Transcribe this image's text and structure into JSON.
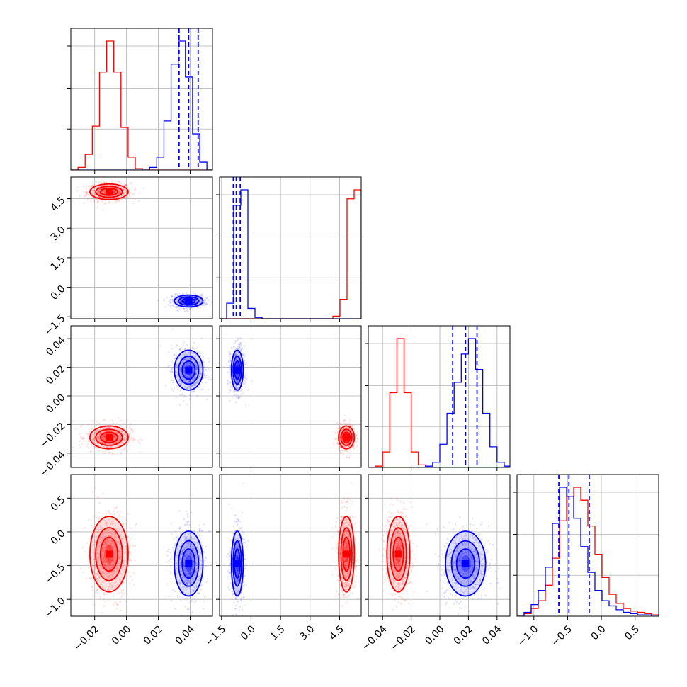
{
  "colors": {
    "series_red": "#ff0000",
    "series_blue": "#0000ff",
    "grid": "#b0b0b0",
    "axes": "#000000"
  },
  "chart_data": {
    "type": "corner",
    "grid": true,
    "parameters": [
      {
        "key": "p1",
        "range": [
          -0.035,
          0.054
        ],
        "ticks": [
          -0.02,
          0.0,
          0.02,
          0.04
        ],
        "tick_labels": [
          "−0.02",
          "0.00",
          "0.02",
          "0.04"
        ]
      },
      {
        "key": "p2",
        "range": [
          -1.6,
          5.6
        ],
        "ticks": [
          -1.5,
          0.0,
          1.5,
          3.0,
          4.5
        ],
        "tick_labels": [
          "−1.5",
          "0.0",
          "1.5",
          "3.0",
          "4.5"
        ]
      },
      {
        "key": "p3",
        "range": [
          -0.05,
          0.049
        ],
        "ticks": [
          -0.04,
          -0.02,
          0.0,
          0.02,
          0.04
        ],
        "tick_labels": [
          "−0.04",
          "−0.02",
          "0.00",
          "0.02",
          "0.04"
        ]
      },
      {
        "key": "p4",
        "range": [
          -1.25,
          0.85
        ],
        "ticks": [
          -1.0,
          -0.5,
          0.0,
          0.5
        ],
        "tick_labels": [
          "−1.0",
          "−0.5",
          "0.0",
          "0.5"
        ]
      }
    ],
    "series": [
      {
        "color": "#ff0000",
        "mean": [
          -0.011,
          4.85,
          -0.029,
          -0.33
        ],
        "std": [
          0.006,
          0.2,
          0.004,
          0.28
        ]
      },
      {
        "color": "#0000ff",
        "mean": [
          0.039,
          -0.7,
          0.018,
          -0.47
        ],
        "std": [
          0.0045,
          0.15,
          0.007,
          0.24
        ],
        "quantiles": [
          [
            0.033,
            0.039,
            0.045
          ],
          [
            -0.9,
            -0.75,
            -0.55
          ],
          [
            0.009,
            0.018,
            0.026
          ],
          [
            -0.63,
            -0.48,
            -0.18
          ]
        ]
      }
    ],
    "histograms_1d": [
      {
        "param": 0,
        "bin_edges": [
          -0.035,
          -0.0305,
          -0.026,
          -0.0215,
          -0.017,
          -0.0125,
          -0.008,
          -0.0035,
          0.001,
          0.0055,
          0.01,
          0.0145,
          0.019,
          0.0235,
          0.028,
          0.0325,
          0.037,
          0.0415,
          0.046,
          0.0505,
          0.054
        ],
        "counts": {
          "red": [
            0,
            0.02,
            0.12,
            0.34,
            0.76,
            1.0,
            0.76,
            0.33,
            0.1,
            0.01,
            0,
            0,
            0,
            0,
            0,
            0,
            0,
            0,
            0,
            0
          ],
          "blue": [
            0,
            0,
            0,
            0,
            0,
            0,
            0,
            0,
            0,
            0,
            0,
            0.02,
            0.1,
            0.38,
            0.82,
            1.0,
            0.72,
            0.28,
            0.06,
            0
          ]
        }
      },
      {
        "param": 1,
        "bin_edges": [
          -1.6,
          -1.24,
          -0.88,
          -0.52,
          -0.16,
          0.2,
          0.56,
          0.92,
          1.28,
          1.64,
          2.0,
          2.36,
          2.72,
          3.08,
          3.44,
          3.8,
          4.16,
          4.52,
          4.88,
          5.24,
          5.6
        ],
        "counts": {
          "red": [
            0,
            0,
            0,
            0,
            0,
            0,
            0,
            0,
            0,
            0,
            0,
            0,
            0,
            0,
            0,
            0,
            0.02,
            0.15,
            0.93,
            1.0
          ],
          "blue": [
            0,
            0.12,
            0.88,
            1.0,
            0.08,
            0.01,
            0,
            0,
            0,
            0,
            0,
            0,
            0,
            0,
            0,
            0,
            0,
            0,
            0,
            0
          ]
        }
      },
      {
        "param": 2,
        "bin_edges": [
          -0.05,
          -0.045,
          -0.04,
          -0.035,
          -0.03,
          -0.025,
          -0.02,
          -0.015,
          -0.01,
          -0.005,
          0.0,
          0.005,
          0.01,
          0.015,
          0.02,
          0.025,
          0.03,
          0.035,
          0.04,
          0.045,
          0.049
        ],
        "counts": {
          "red": [
            0,
            0.01,
            0.12,
            0.58,
            1.0,
            0.58,
            0.12,
            0.02,
            0,
            0,
            0,
            0,
            0,
            0,
            0,
            0,
            0,
            0,
            0,
            0
          ],
          "blue": [
            0,
            0,
            0,
            0,
            0,
            0,
            0,
            0,
            0.01,
            0.04,
            0.18,
            0.42,
            0.66,
            0.88,
            1.0,
            0.76,
            0.42,
            0.16,
            0.04,
            0.01
          ]
        }
      },
      {
        "param": 3,
        "bin_edges": [
          -1.25,
          -1.145,
          -1.04,
          -0.935,
          -0.83,
          -0.725,
          -0.62,
          -0.515,
          -0.41,
          -0.305,
          -0.2,
          -0.095,
          0.01,
          0.115,
          0.22,
          0.325,
          0.43,
          0.535,
          0.64,
          0.745,
          0.85
        ],
        "counts": {
          "red": [
            0,
            0.02,
            0.06,
            0.12,
            0.24,
            0.45,
            0.74,
            0.93,
            1.0,
            0.9,
            0.7,
            0.48,
            0.3,
            0.17,
            0.1,
            0.06,
            0.04,
            0.03,
            0.02,
            0.01
          ],
          "blue": [
            0,
            0.03,
            0.09,
            0.2,
            0.38,
            0.72,
            1.0,
            0.93,
            0.76,
            0.54,
            0.34,
            0.2,
            0.12,
            0.08,
            0.05,
            0.03,
            0.02,
            0.01,
            0.01,
            0
          ]
        }
      }
    ]
  }
}
